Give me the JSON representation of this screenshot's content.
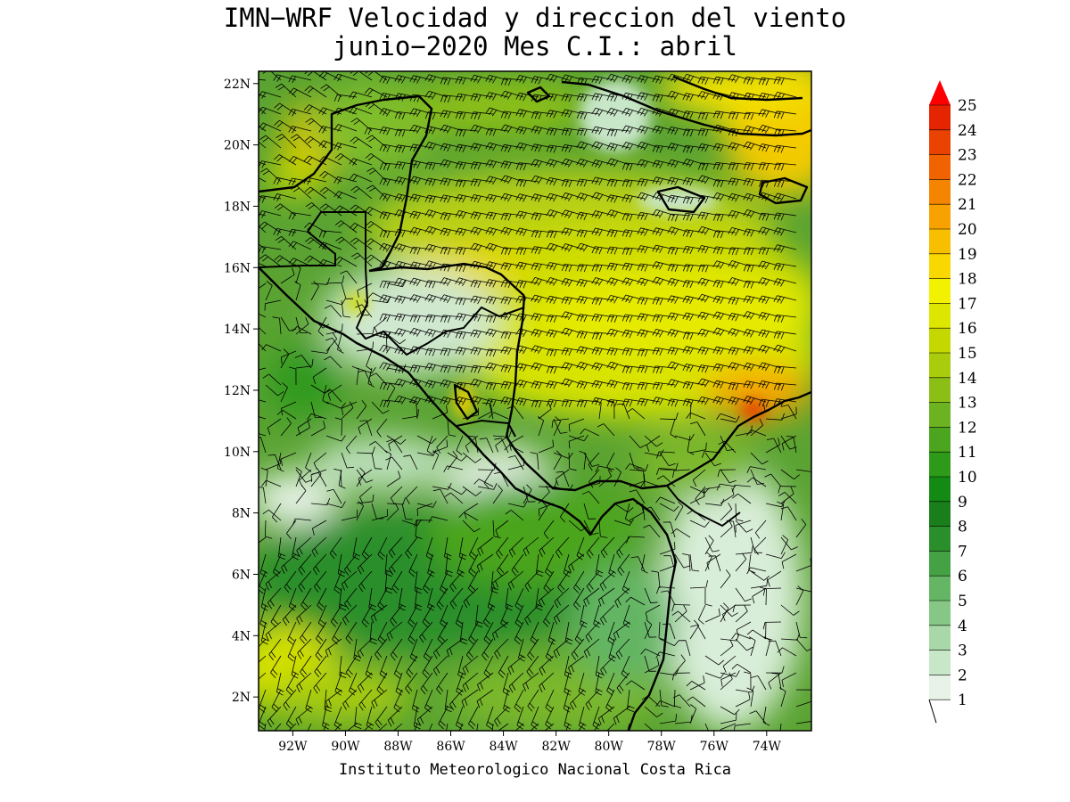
{
  "title": {
    "line1": "IMN−WRF Velocidad y direccion del viento",
    "line2": "junio−2020 Mes C.I.: abril"
  },
  "credit": "Instituto Meteorologico Nacional Costa Rica",
  "map": {
    "lon_range": [
      -93.3,
      -72.3
    ],
    "lat_range": [
      0.9,
      22.4
    ],
    "lat_ticks": [
      "22N",
      "20N",
      "18N",
      "16N",
      "14N",
      "12N",
      "10N",
      "8N",
      "6N",
      "4N",
      "2N"
    ],
    "lon_ticks": [
      "92W",
      "90W",
      "88W",
      "86W",
      "84W",
      "82W",
      "80W",
      "78W",
      "76W",
      "74W"
    ],
    "colorbar": {
      "levels": [
        "1",
        "2",
        "3",
        "4",
        "5",
        "6",
        "7",
        "8",
        "9",
        "10",
        "11",
        "12",
        "13",
        "14",
        "15",
        "16",
        "17",
        "18",
        "19",
        "20",
        "21",
        "22",
        "23",
        "24",
        "25"
      ],
      "colors": [
        "#e6f3e6",
        "#c8e6c8",
        "#a8d8a8",
        "#86c786",
        "#64b564",
        "#44a244",
        "#2a8f2a",
        "#1a7f1a",
        "#138a13",
        "#2e9a1a",
        "#4ba51e",
        "#6db221",
        "#8cbf16",
        "#a9cc0c",
        "#c4d800",
        "#dce600",
        "#f2f200",
        "#f8d800",
        "#f8be00",
        "#f7a200",
        "#f58400",
        "#f06300",
        "#ea4200",
        "#e52400",
        "#ff0000"
      ]
    }
  }
}
